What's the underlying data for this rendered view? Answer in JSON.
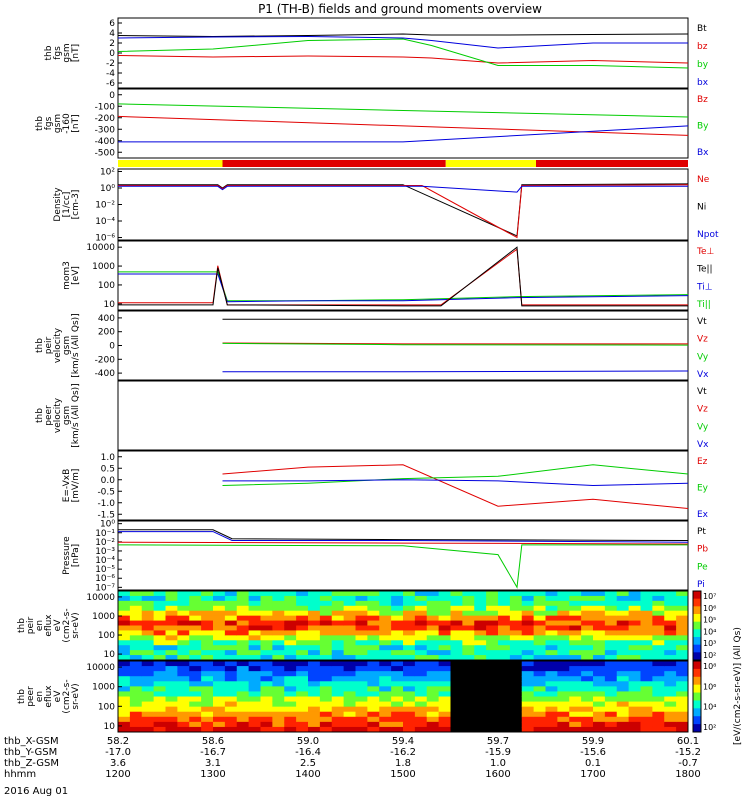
{
  "title": "P1 (TH-B) fields and ground moments overview",
  "date_label": "2016 Aug 01",
  "colorbar_label": "[eV/(cm2-s-sr-eV)] (All Qs)",
  "colorbar_ticks": [
    "10⁷",
    "10⁶",
    "10⁵",
    "10⁴",
    "10³",
    "10²"
  ],
  "colorbar2_ticks": [
    "10⁸",
    "10⁶",
    "10⁴",
    "10²"
  ],
  "colors": {
    "black": "#000000",
    "red": "#e00000",
    "green": "#00cc00",
    "blue": "#0000dd",
    "yellow": "#ffff00"
  },
  "xaxis": {
    "rows": [
      {
        "label": "thb_X-GSM",
        "values": [
          "58.2",
          "58.6",
          "59.0",
          "59.4",
          "59.7",
          "59.9",
          "60.1"
        ]
      },
      {
        "label": "thb_Y-GSM",
        "values": [
          "-17.0",
          "-16.7",
          "-16.4",
          "-16.2",
          "-15.9",
          "-15.6",
          "-15.2"
        ]
      },
      {
        "label": "thb_Z-GSM",
        "values": [
          "3.6",
          "3.1",
          "2.5",
          "1.8",
          "1.0",
          "0.1",
          "-0.7"
        ]
      },
      {
        "label": "hhmm",
        "values": [
          "1200",
          "1300",
          "1400",
          "1500",
          "1600",
          "1700",
          "1800"
        ]
      }
    ]
  },
  "chart_data": [
    {
      "type": "line",
      "ylabel": [
        "thb",
        "fgs",
        "gsm",
        "[nT]"
      ],
      "yticks": [
        "6",
        "4",
        "2",
        "0",
        "-2",
        "-4",
        "-6"
      ],
      "ylim": [
        -7,
        7
      ],
      "legend": [
        {
          "name": "Bt",
          "color": "black"
        },
        {
          "name": "bz",
          "color": "red"
        },
        {
          "name": "by",
          "color": "green"
        },
        {
          "name": "bx",
          "color": "blue"
        }
      ],
      "series": [
        {
          "name": "Bt",
          "color": "black",
          "x": [
            1200,
            1300,
            1400,
            1500,
            1530,
            1600,
            1700,
            1800
          ],
          "y": [
            3.5,
            3.3,
            3.5,
            3.8,
            3.6,
            3.6,
            3.7,
            3.8
          ]
        },
        {
          "name": "bz",
          "color": "red",
          "x": [
            1200,
            1300,
            1400,
            1500,
            1530,
            1600,
            1700,
            1800
          ],
          "y": [
            -0.5,
            -0.8,
            -0.6,
            -0.8,
            -1.0,
            -2.0,
            -1.5,
            -2.0
          ]
        },
        {
          "name": "by",
          "color": "green",
          "x": [
            1200,
            1300,
            1400,
            1500,
            1530,
            1600,
            1700,
            1800
          ],
          "y": [
            0.3,
            0.8,
            2.5,
            2.8,
            1.5,
            -2.5,
            -2.5,
            -3.0
          ]
        },
        {
          "name": "bx",
          "color": "blue",
          "x": [
            1200,
            1300,
            1400,
            1500,
            1530,
            1600,
            1700,
            1800
          ],
          "y": [
            3.0,
            3.2,
            3.3,
            3.0,
            2.5,
            1.0,
            2.0,
            2.0
          ]
        }
      ]
    },
    {
      "type": "line",
      "ylabel": [
        "thb",
        "fgs",
        "gsm",
        "-160",
        "[nT]"
      ],
      "yticks": [
        "0",
        "-100",
        "-200",
        "-300",
        "-400",
        "-500"
      ],
      "ylim": [
        -560,
        20
      ],
      "legend": [
        {
          "name": "Bz",
          "color": "red"
        },
        {
          "name": "By",
          "color": "green"
        },
        {
          "name": "Bx",
          "color": "blue"
        }
      ],
      "series": [
        {
          "name": "Bz",
          "color": "red",
          "x": [
            1200,
            1800
          ],
          "y": [
            -210,
            -370
          ]
        },
        {
          "name": "By",
          "color": "green",
          "x": [
            1200,
            1800
          ],
          "y": [
            -105,
            -215
          ]
        },
        {
          "name": "Bx",
          "color": "blue",
          "x": [
            1200,
            1500,
            1800
          ],
          "y": [
            -425,
            -425,
            -290
          ]
        }
      ]
    },
    {
      "type": "table",
      "segments": [
        {
          "from": 1200,
          "to": 1310,
          "color": "yellow"
        },
        {
          "from": 1310,
          "to": 1545,
          "color": "red"
        },
        {
          "from": 1545,
          "to": 1640,
          "color": "yellow"
        },
        {
          "from": 1640,
          "to": 1800,
          "color": "red"
        }
      ]
    },
    {
      "type": "line",
      "ylabel": [
        "Density",
        "[1/cc]",
        "[cm-3]"
      ],
      "yticks": [
        "10²",
        "10⁰",
        "10⁻²",
        "10⁻⁴",
        "10⁻⁶"
      ],
      "log": true,
      "ylim": [
        -6.3,
        2.3
      ],
      "legend": [
        {
          "name": "Ne",
          "color": "red"
        },
        {
          "name": "Ni",
          "color": "black"
        },
        {
          "name": "Npot",
          "color": "blue"
        }
      ],
      "series": [
        {
          "name": "Ni",
          "color": "black",
          "x": [
            1200,
            1305,
            1310,
            1315,
            1500,
            1620,
            1625,
            1800
          ],
          "y": [
            0.4,
            0.4,
            0.0,
            0.4,
            0.4,
            -5.8,
            0.4,
            0.5
          ]
        },
        {
          "name": "Ne",
          "color": "red",
          "x": [
            1200,
            1305,
            1310,
            1315,
            1520,
            1620,
            1625,
            1800
          ],
          "y": [
            0.3,
            0.3,
            -0.1,
            0.3,
            0.3,
            -6.0,
            0.3,
            0.4
          ]
        },
        {
          "name": "Npot",
          "color": "blue",
          "x": [
            1200,
            1305,
            1310,
            1315,
            1520,
            1620,
            1625,
            1800
          ],
          "y": [
            0.2,
            0.2,
            -0.2,
            0.2,
            0.2,
            -0.5,
            0.2,
            0.2
          ]
        }
      ]
    },
    {
      "type": "line",
      "ylabel": [
        "mom3",
        "[eV]"
      ],
      "yticks": [
        "10000",
        "1000",
        "100",
        "10"
      ],
      "log": true,
      "ylim": [
        0.75,
        4.1
      ],
      "legend": [
        {
          "name": "Te⊥",
          "color": "red"
        },
        {
          "name": "Te||",
          "color": "black"
        },
        {
          "name": "Ti⊥",
          "color": "blue"
        },
        {
          "name": "Ti||",
          "color": "green"
        }
      ],
      "series": [
        {
          "name": "Ti||",
          "color": "green",
          "x": [
            1200,
            1305,
            1315,
            1400,
            1500,
            1620,
            1800
          ],
          "y": [
            2.6,
            2.6,
            1.2,
            1.2,
            1.25,
            1.4,
            1.5
          ]
        },
        {
          "name": "Ti⊥",
          "color": "blue",
          "x": [
            1200,
            1305,
            1315,
            1400,
            1500,
            1620,
            1800
          ],
          "y": [
            2.5,
            2.5,
            1.15,
            1.2,
            1.2,
            1.35,
            1.45
          ]
        },
        {
          "name": "Te⊥",
          "color": "red",
          "x": [
            1200,
            1300,
            1305,
            1315,
            1500,
            1540,
            1620,
            1625,
            1800
          ],
          "y": [
            1.1,
            1.1,
            2.9,
            1.0,
            1.0,
            1.0,
            3.7,
            1.0,
            1.0
          ]
        },
        {
          "name": "Te||",
          "color": "black",
          "x": [
            1200,
            1300,
            1305,
            1315,
            1500,
            1540,
            1620,
            1625,
            1800
          ],
          "y": [
            1.0,
            1.0,
            2.8,
            1.0,
            0.95,
            0.95,
            3.8,
            0.95,
            0.95
          ]
        }
      ]
    },
    {
      "type": "line",
      "ylabel": [
        "thb",
        "peir",
        "velocity",
        "gsm",
        "[km/s (All Qs)]"
      ],
      "yticks": [
        "400",
        "200",
        "0",
        "-200",
        "-400"
      ],
      "ylim": [
        -420,
        420
      ],
      "legend": [
        {
          "name": "Vt",
          "color": "black"
        },
        {
          "name": "Vz",
          "color": "red"
        },
        {
          "name": "Vy",
          "color": "green"
        },
        {
          "name": "Vx",
          "color": "blue"
        }
      ],
      "series": [
        {
          "name": "Vt",
          "color": "black",
          "x": [
            1310,
            1500,
            1800
          ],
          "y": [
            320,
            320,
            320
          ]
        },
        {
          "name": "Vz",
          "color": "red",
          "x": [
            1310,
            1500,
            1800
          ],
          "y": [
            30,
            20,
            20
          ]
        },
        {
          "name": "Vy",
          "color": "green",
          "x": [
            1310,
            1500,
            1800
          ],
          "y": [
            25,
            10,
            5
          ]
        },
        {
          "name": "Vx",
          "color": "blue",
          "x": [
            1310,
            1500,
            1800
          ],
          "y": [
            -320,
            -320,
            -310
          ]
        }
      ]
    },
    {
      "type": "line",
      "ylabel": [
        "thb",
        "peer",
        "velocity",
        "gsm",
        "[km/s (All Qs)]"
      ],
      "yticks": [],
      "legend": [
        {
          "name": "Vt",
          "color": "black"
        },
        {
          "name": "Vz",
          "color": "red"
        },
        {
          "name": "Vy",
          "color": "green"
        },
        {
          "name": "Vx",
          "color": "blue"
        }
      ],
      "series": []
    },
    {
      "type": "line",
      "ylabel": [
        "E=-VxB",
        "[mV/m]"
      ],
      "yticks": [
        "1.0",
        "0.5",
        "0.0",
        "-0.5",
        "-1.0",
        "-1.5"
      ],
      "ylim": [
        -1.7,
        1.3
      ],
      "legend": [
        {
          "name": "Ez",
          "color": "red"
        },
        {
          "name": "Ey",
          "color": "green"
        },
        {
          "name": "Ex",
          "color": "blue"
        }
      ],
      "series": [
        {
          "name": "Ez",
          "color": "red",
          "x": [
            1310,
            1400,
            1500,
            1600,
            1700,
            1800
          ],
          "y": [
            0.3,
            0.6,
            0.7,
            -1.1,
            -0.8,
            -1.2
          ]
        },
        {
          "name": "Ey",
          "color": "green",
          "x": [
            1310,
            1400,
            1500,
            1600,
            1700,
            1800
          ],
          "y": [
            -0.2,
            -0.1,
            0.1,
            0.2,
            0.7,
            0.3
          ]
        },
        {
          "name": "Ex",
          "color": "blue",
          "x": [
            1310,
            1400,
            1500,
            1600,
            1700,
            1800
          ],
          "y": [
            0.0,
            0.0,
            0.05,
            0.0,
            -0.2,
            -0.1
          ]
        }
      ]
    },
    {
      "type": "line",
      "ylabel": [
        "Pressure",
        "[nPa]"
      ],
      "yticks": [
        "10⁰",
        "10⁻¹",
        "10⁻²",
        "10⁻³",
        "10⁻⁴",
        "10⁻⁵",
        "10⁻⁶",
        "10⁻⁷"
      ],
      "log": true,
      "ylim": [
        -7.5,
        0.3
      ],
      "legend": [
        {
          "name": "Pt",
          "color": "black"
        },
        {
          "name": "Pb",
          "color": "red"
        },
        {
          "name": "Pe",
          "color": "green"
        },
        {
          "name": "Pi",
          "color": "blue"
        }
      ],
      "series": [
        {
          "name": "Pt",
          "color": "black",
          "x": [
            1200,
            1300,
            1320,
            1500,
            1800
          ],
          "y": [
            -0.7,
            -0.7,
            -1.7,
            -1.8,
            -1.9
          ]
        },
        {
          "name": "Pi",
          "color": "blue",
          "x": [
            1200,
            1300,
            1320,
            1500,
            1800
          ],
          "y": [
            -0.9,
            -0.9,
            -1.9,
            -1.9,
            -2.1
          ]
        },
        {
          "name": "Pb",
          "color": "red",
          "x": [
            1200,
            1500,
            1800
          ],
          "y": [
            -2.1,
            -2.2,
            -2.3
          ]
        },
        {
          "name": "Pe",
          "color": "green",
          "x": [
            1200,
            1500,
            1600,
            1620,
            1625,
            1800
          ],
          "y": [
            -2.4,
            -2.5,
            -3.5,
            -7.2,
            -2.4,
            -2.4
          ]
        }
      ]
    },
    {
      "type": "heatmap",
      "ylabel": [
        "thb",
        "peir",
        "en",
        "eflux",
        "eV",
        "(cm2-s-",
        "sr-eV)"
      ],
      "yticks": [
        "10000",
        "1000",
        "100",
        "10"
      ],
      "log": true,
      "ylim": [
        0.8,
        4.3
      ]
    },
    {
      "type": "heatmap",
      "ylabel": [
        "thb",
        "peer",
        "en",
        "eflux",
        "eV",
        "(cm2-s-",
        "sr-eV)"
      ],
      "yticks": [
        "10000",
        "1000",
        "100",
        "10"
      ],
      "log": true,
      "ylim": [
        0.8,
        4.3
      ]
    }
  ]
}
